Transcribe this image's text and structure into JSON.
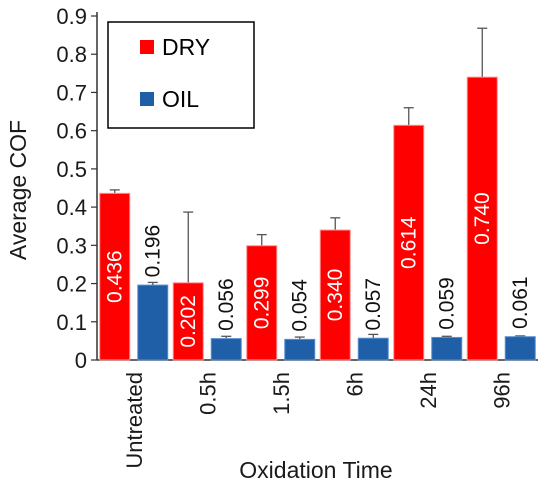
{
  "chart_data": {
    "type": "bar",
    "xlabel": "Oxidation Time",
    "ylabel": "Average COF",
    "ylim": [
      0,
      0.9
    ],
    "yticks": [
      "0",
      "0.1",
      "0.2",
      "0.3",
      "0.4",
      "0.5",
      "0.6",
      "0.7",
      "0.8",
      "0.9"
    ],
    "categories": [
      "Untreated",
      "0.5h",
      "1.5h",
      "6h",
      "24h",
      "96h"
    ],
    "legend_position": "top-left",
    "grid": false,
    "series": [
      {
        "name": "DRY",
        "color": "#ff0000",
        "values": [
          0.436,
          0.202,
          0.299,
          0.34,
          0.614,
          0.74
        ],
        "labels": [
          "0.436",
          "0.202",
          "0.299",
          "0.340",
          "0.614",
          "0.740"
        ],
        "error_upper": [
          0.445,
          0.387,
          0.328,
          0.372,
          0.66,
          0.868
        ]
      },
      {
        "name": "OIL",
        "color": "#1f5fa8",
        "values": [
          0.196,
          0.056,
          0.054,
          0.057,
          0.059,
          0.061
        ],
        "labels": [
          "0.196",
          "0.056",
          "0.054",
          "0.057",
          "0.059",
          "0.061"
        ],
        "error_upper": [
          0.203,
          0.062,
          0.06,
          0.067,
          0.062,
          0.063
        ]
      }
    ]
  }
}
